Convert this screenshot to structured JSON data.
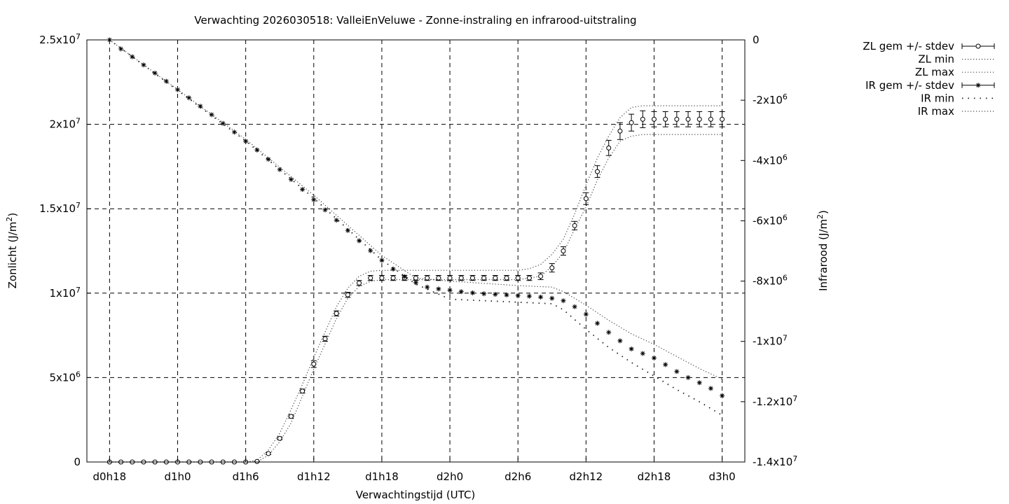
{
  "chart_data": {
    "type": "line",
    "title": "Verwachting 2026030518: ValleiEnVeluwe - Zonne-instraling en infrarood-uitstraling",
    "xlabel": "Verwachtingstijd (UTC)",
    "ylabel": "Zonlicht (J/m2)",
    "y2label": "Infrarood (J/m2)",
    "x_unit": "hours since d0h0",
    "xlim": [
      16,
      74
    ],
    "xticks": [
      {
        "x": 18,
        "label": "d0h18"
      },
      {
        "x": 24,
        "label": "d1h0"
      },
      {
        "x": 30,
        "label": "d1h6"
      },
      {
        "x": 36,
        "label": "d1h12"
      },
      {
        "x": 42,
        "label": "d1h18"
      },
      {
        "x": 48,
        "label": "d2h0"
      },
      {
        "x": 54,
        "label": "d2h6"
      },
      {
        "x": 60,
        "label": "d2h12"
      },
      {
        "x": 66,
        "label": "d2h18"
      },
      {
        "x": 72,
        "label": "d3h0"
      }
    ],
    "ylim": [
      0,
      25000000
    ],
    "yticks": [
      {
        "v": 0,
        "label": "0"
      },
      {
        "v": 5000000,
        "label": "5x10^6"
      },
      {
        "v": 10000000,
        "label": "1x10^7"
      },
      {
        "v": 15000000,
        "label": "1.5x10^7"
      },
      {
        "v": 20000000,
        "label": "2x10^7"
      },
      {
        "v": 25000000,
        "label": "2.5x10^7"
      }
    ],
    "y2lim": [
      -14000000,
      0
    ],
    "y2ticks": [
      {
        "v": 0,
        "label": "0"
      },
      {
        "v": -2000000,
        "label": "-2x10^6"
      },
      {
        "v": -4000000,
        "label": "-4x10^6"
      },
      {
        "v": -6000000,
        "label": "-6x10^6"
      },
      {
        "v": -8000000,
        "label": "-8x10^6"
      },
      {
        "v": -10000000,
        "label": "-1x10^7"
      },
      {
        "v": -12000000,
        "label": "-1.2x10^7"
      },
      {
        "v": -14000000,
        "label": "-1.4x10^7"
      }
    ],
    "grid": true,
    "legend_position": "right, outside plot",
    "legend": [
      {
        "label": "ZL gem +/- stdev",
        "style": "errorbar-circle"
      },
      {
        "label": "ZL min",
        "style": "dotted"
      },
      {
        "label": "ZL max",
        "style": "dotted"
      },
      {
        "label": "IR gem +/- stdev",
        "style": "errorbar-star"
      },
      {
        "label": "IR min",
        "style": "sparse-dotted"
      },
      {
        "label": "IR max",
        "style": "dotted"
      }
    ],
    "series": [
      {
        "name": "ZL gem +/- stdev",
        "axis": "y",
        "x": [
          18,
          19,
          20,
          21,
          22,
          23,
          24,
          25,
          26,
          27,
          28,
          29,
          30,
          31,
          32,
          33,
          34,
          35,
          36,
          37,
          38,
          39,
          40,
          41,
          42,
          43,
          44,
          45,
          46,
          47,
          48,
          49,
          50,
          51,
          52,
          53,
          54,
          55,
          56,
          57,
          58,
          59,
          60,
          61,
          62,
          63,
          64,
          65,
          66,
          67,
          68,
          69,
          70,
          71,
          72
        ],
        "values": [
          0,
          0,
          0,
          0,
          0,
          0,
          0,
          0,
          0,
          0,
          0,
          0,
          0,
          30000,
          500000,
          1400000,
          2700000,
          4200000,
          5800000,
          7300000,
          8800000,
          9900000,
          10600000,
          10900000,
          10900000,
          10900000,
          10900000,
          10900000,
          10900000,
          10900000,
          10900000,
          10900000,
          10900000,
          10900000,
          10900000,
          10900000,
          10900000,
          10900000,
          11000000,
          11500000,
          12500000,
          14000000,
          15600000,
          17200000,
          18600000,
          19600000,
          20100000,
          20300000,
          20300000,
          20300000,
          20300000,
          20300000,
          20300000,
          20300000,
          20300000
        ],
        "stdev": [
          0,
          0,
          0,
          0,
          0,
          0,
          0,
          0,
          0,
          0,
          0,
          0,
          0,
          20000,
          60000,
          80000,
          100000,
          120000,
          200000,
          150000,
          150000,
          150000,
          150000,
          150000,
          150000,
          150000,
          150000,
          150000,
          150000,
          150000,
          150000,
          150000,
          150000,
          150000,
          150000,
          150000,
          150000,
          150000,
          200000,
          250000,
          250000,
          250000,
          350000,
          350000,
          450000,
          500000,
          500000,
          500000,
          450000,
          450000,
          450000,
          450000,
          450000,
          450000,
          450000
        ]
      },
      {
        "name": "ZL min",
        "axis": "y",
        "x": [
          18,
          29,
          30,
          31,
          32,
          33,
          34,
          35,
          36,
          37,
          38,
          39,
          40,
          41,
          42,
          48,
          54,
          55,
          56,
          57,
          58,
          59,
          60,
          61,
          62,
          63,
          64,
          65,
          66,
          72
        ],
        "values": [
          0,
          0,
          0,
          0,
          400000,
          1200000,
          2300000,
          3900000,
          5500000,
          7000000,
          8500000,
          9700000,
          10400000,
          10700000,
          10800000,
          10800000,
          10800000,
          10900000,
          11000000,
          11600000,
          12400000,
          13800000,
          15100000,
          16700000,
          18000000,
          19000000,
          19300000,
          19400000,
          19400000,
          19400000
        ]
      },
      {
        "name": "ZL max",
        "axis": "y",
        "x": [
          18,
          29,
          30,
          31,
          32,
          33,
          34,
          35,
          36,
          37,
          38,
          39,
          40,
          41,
          42,
          48,
          54,
          55,
          56,
          57,
          58,
          59,
          60,
          61,
          62,
          63,
          64,
          65,
          66,
          72
        ],
        "values": [
          0,
          0,
          0,
          100000,
          700000,
          1700000,
          3100000,
          4600000,
          6200000,
          7700000,
          9200000,
          10300000,
          11000000,
          11300000,
          11350000,
          11350000,
          11350000,
          11450000,
          11700000,
          12300000,
          13200000,
          14700000,
          16400000,
          18000000,
          19300000,
          20400000,
          21000000,
          21100000,
          21100000,
          21100000
        ]
      },
      {
        "name": "IR gem +/- stdev",
        "axis": "y2",
        "x": [
          18,
          19,
          20,
          21,
          22,
          23,
          24,
          25,
          26,
          27,
          28,
          29,
          30,
          31,
          32,
          33,
          34,
          35,
          36,
          37,
          38,
          39,
          40,
          41,
          42,
          43,
          44,
          45,
          46,
          47,
          48,
          49,
          50,
          51,
          52,
          53,
          54,
          55,
          56,
          57,
          58,
          59,
          60,
          61,
          62,
          63,
          64,
          65,
          66,
          67,
          68,
          69,
          70,
          71,
          72
        ],
        "values": [
          0,
          -300000,
          -560000,
          -830000,
          -1100000,
          -1370000,
          -1650000,
          -1920000,
          -2200000,
          -2480000,
          -2770000,
          -3060000,
          -3360000,
          -3650000,
          -3960000,
          -4300000,
          -4630000,
          -4960000,
          -5300000,
          -5640000,
          -5980000,
          -6320000,
          -6660000,
          -6990000,
          -7310000,
          -7600000,
          -7850000,
          -8050000,
          -8200000,
          -8260000,
          -8300000,
          -8350000,
          -8390000,
          -8420000,
          -8440000,
          -8460000,
          -8480000,
          -8500000,
          -8530000,
          -8570000,
          -8650000,
          -8850000,
          -9100000,
          -9400000,
          -9700000,
          -9980000,
          -10250000,
          -10400000,
          -10550000,
          -10770000,
          -11000000,
          -11200000,
          -11370000,
          -11560000,
          -11800000
        ],
        "stdev": [
          0,
          0,
          0,
          0,
          0,
          0,
          0,
          0,
          0,
          0,
          0,
          0,
          0,
          0,
          0,
          0,
          0,
          0,
          0,
          0,
          0,
          0,
          0,
          0,
          0,
          0,
          0,
          0,
          0,
          0,
          0,
          0,
          0,
          0,
          0,
          0,
          0,
          0,
          0,
          0,
          0,
          0,
          0,
          0,
          0,
          0,
          0,
          0,
          0,
          0,
          0,
          0,
          0,
          0,
          0
        ]
      },
      {
        "name": "IR min",
        "axis": "y2",
        "x": [
          18,
          30,
          36,
          42,
          45,
          48,
          54,
          57,
          58,
          60,
          62,
          64,
          66,
          68,
          70,
          72
        ],
        "values": [
          0,
          -3350000,
          -5250000,
          -7300000,
          -8100000,
          -8600000,
          -8700000,
          -8750000,
          -8950000,
          -9600000,
          -10200000,
          -10700000,
          -11150000,
          -11600000,
          -12000000,
          -12450000
        ]
      },
      {
        "name": "IR max",
        "axis": "y2",
        "x": [
          18,
          30,
          36,
          42,
          45,
          48,
          54,
          57,
          58,
          60,
          62,
          64,
          66,
          68,
          70,
          72
        ],
        "values": [
          0,
          -3300000,
          -5150000,
          -7150000,
          -7900000,
          -8000000,
          -8150000,
          -8200000,
          -8350000,
          -8800000,
          -9300000,
          -9750000,
          -10100000,
          -10500000,
          -10900000,
          -11250000
        ]
      }
    ]
  }
}
